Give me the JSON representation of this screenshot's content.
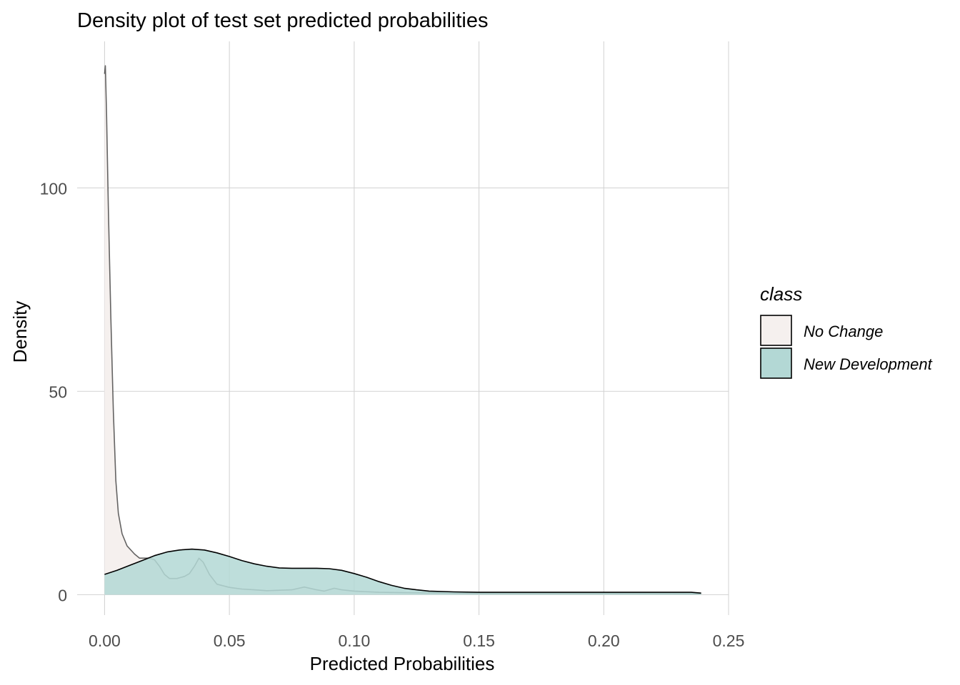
{
  "chart_data": {
    "type": "area",
    "title": "Density plot of test set predicted probabilities",
    "xlabel": "Predicted Probabilities",
    "ylabel": "Density",
    "xlim": [
      -0.011,
      0.25
    ],
    "ylim": [
      -5,
      136
    ],
    "x_ticks": [
      0.0,
      0.05,
      0.1,
      0.15,
      0.2,
      0.25
    ],
    "x_tick_labels": [
      "0.00",
      "0.05",
      "0.10",
      "0.15",
      "0.20",
      "0.25"
    ],
    "y_ticks": [
      0,
      50,
      100
    ],
    "y_tick_labels": [
      "0",
      "50",
      "100"
    ],
    "grid": true,
    "legend": {
      "title": "class",
      "position": "right"
    },
    "series": [
      {
        "name": "No Change",
        "fill": "#f5f0ee",
        "stroke": "#000000",
        "points": [
          [
            0.0,
            128
          ],
          [
            0.0003,
            130
          ],
          [
            0.0008,
            118
          ],
          [
            0.0015,
            95
          ],
          [
            0.0025,
            68
          ],
          [
            0.0035,
            45
          ],
          [
            0.0045,
            28
          ],
          [
            0.0055,
            20
          ],
          [
            0.007,
            15
          ],
          [
            0.009,
            12
          ],
          [
            0.012,
            10
          ],
          [
            0.014,
            9
          ],
          [
            0.018,
            9
          ],
          [
            0.02,
            8.6
          ],
          [
            0.022,
            7
          ],
          [
            0.024,
            5
          ],
          [
            0.026,
            4
          ],
          [
            0.029,
            4
          ],
          [
            0.032,
            4.5
          ],
          [
            0.034,
            5.2
          ],
          [
            0.036,
            7
          ],
          [
            0.0378,
            9
          ],
          [
            0.0395,
            8
          ],
          [
            0.042,
            5
          ],
          [
            0.045,
            2.6
          ],
          [
            0.05,
            1.8
          ],
          [
            0.055,
            1.4
          ],
          [
            0.06,
            1.2
          ],
          [
            0.065,
            1.0
          ],
          [
            0.07,
            1.1
          ],
          [
            0.075,
            1.2
          ],
          [
            0.08,
            1.9
          ],
          [
            0.085,
            1.2
          ],
          [
            0.088,
            0.9
          ],
          [
            0.092,
            1.6
          ],
          [
            0.095,
            1.2
          ],
          [
            0.1,
            0.9
          ],
          [
            0.11,
            0.6
          ],
          [
            0.12,
            0.5
          ],
          [
            0.15,
            0.3
          ],
          [
            0.2,
            0.3
          ],
          [
            0.239,
            0.2
          ]
        ]
      },
      {
        "name": "New Development",
        "fill": "#b3d8d5",
        "stroke": "#000000",
        "points": [
          [
            0.0,
            5
          ],
          [
            0.005,
            6
          ],
          [
            0.01,
            7.2
          ],
          [
            0.015,
            8.4
          ],
          [
            0.02,
            9.6
          ],
          [
            0.025,
            10.5
          ],
          [
            0.03,
            11
          ],
          [
            0.035,
            11.2
          ],
          [
            0.04,
            11
          ],
          [
            0.045,
            10.3
          ],
          [
            0.05,
            9.4
          ],
          [
            0.055,
            8.4
          ],
          [
            0.06,
            7.6
          ],
          [
            0.065,
            7
          ],
          [
            0.07,
            6.6
          ],
          [
            0.075,
            6.5
          ],
          [
            0.08,
            6.5
          ],
          [
            0.085,
            6.5
          ],
          [
            0.09,
            6.4
          ],
          [
            0.095,
            6
          ],
          [
            0.1,
            5.2
          ],
          [
            0.105,
            4.3
          ],
          [
            0.11,
            3.2
          ],
          [
            0.115,
            2.3
          ],
          [
            0.12,
            1.6
          ],
          [
            0.125,
            1.2
          ],
          [
            0.13,
            0.9
          ],
          [
            0.14,
            0.7
          ],
          [
            0.15,
            0.6
          ],
          [
            0.2,
            0.6
          ],
          [
            0.235,
            0.6
          ],
          [
            0.239,
            0.4
          ]
        ]
      }
    ]
  }
}
